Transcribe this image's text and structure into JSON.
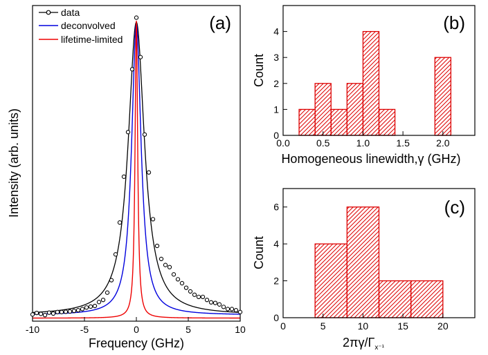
{
  "chart_data": [
    {
      "id": "a",
      "type": "line",
      "panel_label": "(a)",
      "xlabel": "Frequency (GHz)",
      "ylabel": "Intensity (arb. units)",
      "xlim": [
        -10,
        10
      ],
      "ylim": [
        0,
        1.04
      ],
      "xticks": [
        -10,
        -5,
        0,
        5,
        10
      ],
      "yticks_labeled": false,
      "legend_position": "top-left",
      "series": [
        {
          "name": "data",
          "style": "line-with-open-circles",
          "color": "#000000",
          "points": [
            [
              -10,
              0.022
            ],
            [
              -9.6,
              0.027
            ],
            [
              -9.2,
              0.024
            ],
            [
              -8.8,
              0.02
            ],
            [
              -8.4,
              0.028
            ],
            [
              -8.0,
              0.025
            ],
            [
              -7.6,
              0.03
            ],
            [
              -7.2,
              0.03
            ],
            [
              -6.8,
              0.031
            ],
            [
              -6.4,
              0.032
            ],
            [
              -6.0,
              0.034
            ],
            [
              -5.6,
              0.036
            ],
            [
              -5.2,
              0.04
            ],
            [
              -4.8,
              0.045
            ],
            [
              -4.4,
              0.048
            ],
            [
              -4.0,
              0.05
            ],
            [
              -3.6,
              0.063
            ],
            [
              -3.2,
              0.07
            ],
            [
              -2.8,
              0.094
            ],
            [
              -2.4,
              0.135
            ],
            [
              -2.0,
              0.22
            ],
            [
              -1.6,
              0.325
            ],
            [
              -1.2,
              0.476
            ],
            [
              -0.8,
              0.623
            ],
            [
              -0.4,
              0.83
            ],
            [
              0.0,
              1.0
            ],
            [
              0.4,
              0.87
            ],
            [
              0.8,
              0.615
            ],
            [
              1.2,
              0.49
            ],
            [
              1.6,
              0.336
            ],
            [
              2.0,
              0.248
            ],
            [
              2.4,
              0.205
            ],
            [
              2.8,
              0.185
            ],
            [
              3.2,
              0.178
            ],
            [
              3.6,
              0.154
            ],
            [
              4.0,
              0.138
            ],
            [
              4.4,
              0.125
            ],
            [
              4.8,
              0.11
            ],
            [
              5.2,
              0.098
            ],
            [
              5.6,
              0.087
            ],
            [
              6.0,
              0.08
            ],
            [
              6.4,
              0.08
            ],
            [
              6.8,
              0.07
            ],
            [
              7.2,
              0.062
            ],
            [
              7.6,
              0.06
            ],
            [
              8.0,
              0.055
            ],
            [
              8.4,
              0.047
            ],
            [
              8.8,
              0.04
            ],
            [
              9.2,
              0.04
            ],
            [
              9.6,
              0.036
            ],
            [
              10.0,
              0.03
            ]
          ]
        },
        {
          "name": "deconvolved",
          "style": "line",
          "color": "#0000dd",
          "peak": 0.98,
          "center": 0.0,
          "hwhm_ghz": 0.55,
          "baseline": 0.02
        },
        {
          "name": "lifetime-limited",
          "style": "line",
          "color": "#ee0000",
          "peak": 0.99,
          "center": 0.0,
          "hwhm_ghz": 0.15,
          "baseline": 0.01
        }
      ],
      "fit_curve": {
        "color": "#000000",
        "peak": 0.985,
        "center": 0.0,
        "hwhm_ghz": 0.95,
        "baseline": 0.02
      }
    },
    {
      "id": "b",
      "type": "bar",
      "panel_label": "(b)",
      "xlabel": "Homogeneous linewidth,γ (GHz)",
      "ylabel": "Count",
      "xlim": [
        0.0,
        2.4
      ],
      "ylim": [
        0,
        5
      ],
      "xticks": [
        "0.0",
        "0.5",
        "1.0",
        "1.5",
        "2.0"
      ],
      "yticks": [
        "0",
        "1",
        "2",
        "3",
        "4"
      ],
      "bar_color": "#dd0000",
      "hatch": "diagonal",
      "bins": [
        {
          "from": 0.2,
          "to": 0.4,
          "count": 1
        },
        {
          "from": 0.4,
          "to": 0.6,
          "count": 2
        },
        {
          "from": 0.6,
          "to": 0.8,
          "count": 1
        },
        {
          "from": 0.8,
          "to": 1.0,
          "count": 2
        },
        {
          "from": 1.0,
          "to": 1.2,
          "count": 4
        },
        {
          "from": 1.2,
          "to": 1.4,
          "count": 1
        },
        {
          "from": 1.9,
          "to": 2.1,
          "count": 3
        }
      ]
    },
    {
      "id": "c",
      "type": "bar",
      "panel_label": "(c)",
      "xlabel_main": "2πγ/Γ",
      "xlabel_sub": "x⁻¹",
      "ylabel": "Count",
      "xlim": [
        0,
        24
      ],
      "ylim": [
        0,
        7
      ],
      "xticks": [
        "0",
        "5",
        "10",
        "15",
        "20"
      ],
      "yticks": [
        "0",
        "2",
        "4",
        "6"
      ],
      "bar_color": "#dd0000",
      "hatch": "diagonal",
      "bins": [
        {
          "from": 4,
          "to": 8,
          "count": 4
        },
        {
          "from": 8,
          "to": 12,
          "count": 6
        },
        {
          "from": 12,
          "to": 16,
          "count": 2
        },
        {
          "from": 16,
          "to": 20,
          "count": 2
        }
      ]
    }
  ]
}
